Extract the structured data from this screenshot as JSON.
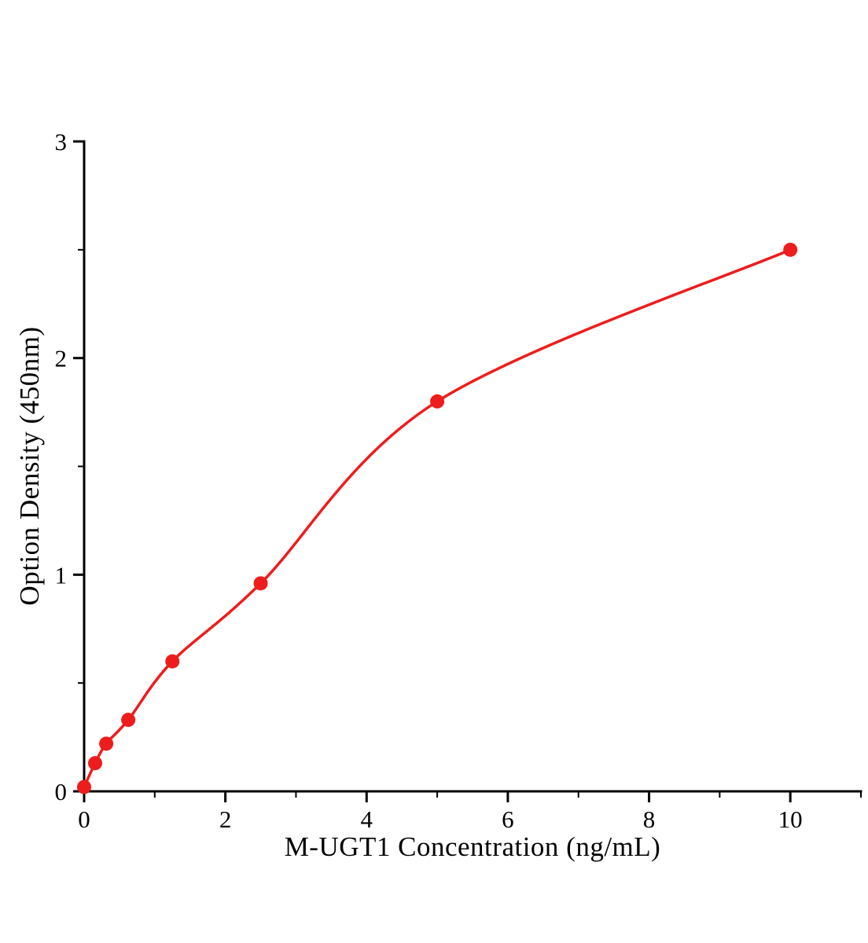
{
  "figure": {
    "background": "#ffffff"
  },
  "chart_data": {
    "type": "scatter",
    "title": "",
    "xlabel": "M-UGT1 Concentration (ng/mL)",
    "ylabel": "Option Density (450nm)",
    "x": [
      0,
      0.156,
      0.313,
      0.625,
      1.25,
      2.5,
      5,
      10
    ],
    "y": [
      0.02,
      0.13,
      0.22,
      0.33,
      0.6,
      0.96,
      1.8,
      2.5
    ],
    "fit_curve": "smooth 4PL-style fit through all points",
    "xlim": [
      0,
      11
    ],
    "ylim": [
      0,
      3
    ],
    "x_major_ticks": [
      0,
      2,
      4,
      6,
      8,
      10
    ],
    "x_minor_ticks": [
      1,
      3,
      5,
      7,
      9,
      11
    ],
    "y_major_ticks": [
      0,
      1,
      2,
      3
    ],
    "y_minor_ticks": [
      0.5,
      1.5,
      2.5
    ],
    "grid": false,
    "legend": "none",
    "marker": "circle",
    "marker_radius": 9,
    "line_color": "#ee1c1c",
    "point_color": "#ee1c1c",
    "axis_color": "#000000",
    "tick_label_color": "#000000"
  }
}
